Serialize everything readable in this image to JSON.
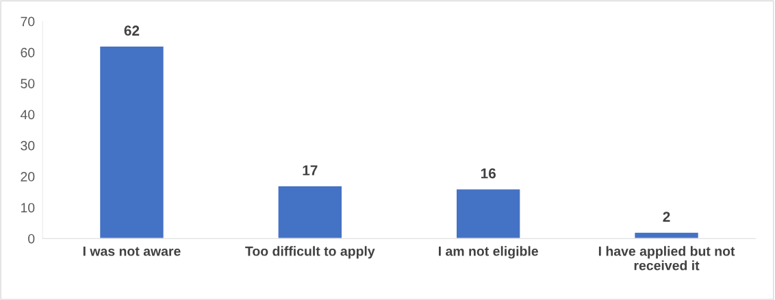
{
  "chart_data": {
    "type": "bar",
    "categories": [
      "I was not aware",
      "Too difficult to apply",
      "I am not eligible",
      "I have applied but not\nreceived it"
    ],
    "values": [
      62,
      17,
      16,
      2
    ],
    "color": "#4472c4",
    "ylim": [
      0,
      70
    ],
    "yticks": [
      0,
      10,
      20,
      30,
      40,
      50,
      60,
      70
    ],
    "grid": false,
    "data_labels": true
  }
}
